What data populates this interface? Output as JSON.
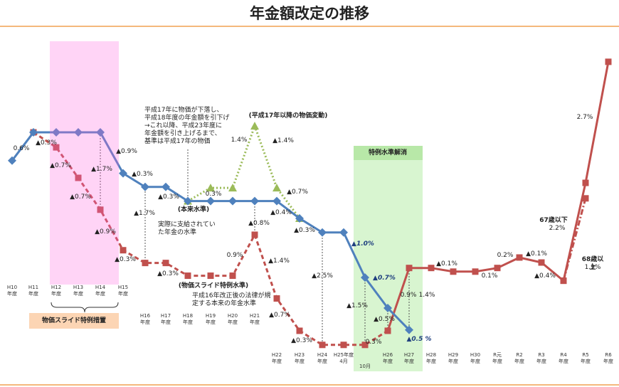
{
  "chart_data": {
    "type": "line",
    "title": "年金額改定の推移",
    "categories": [
      "H10\n年度",
      "H11\n年度",
      "H12\n年度",
      "H13\n年度",
      "H14\n年度",
      "H15\n年度",
      "H16\n年度",
      "H17\n年度",
      "H18\n年度",
      "H19\n年度",
      "H20\n年度",
      "H21\n年度",
      "H22\n年度",
      "H23\n年度",
      "H24\n年度",
      "H25年度\n4月",
      "10月",
      "H26\n年度",
      "H27\n年度",
      "H28\n年度",
      "H29\n年度",
      "H30\n年度",
      "R元\n年度",
      "R2\n年度",
      "R3\n年度",
      "R4\n年度",
      "R5\n年度",
      "R6\n年度"
    ],
    "ylim": [
      94.78,
      101.97
    ],
    "series": [
      {
        "name": "(本来水準)",
        "color": "#c0504d",
        "dash": "dashed",
        "marker": "square",
        "values": [
          null,
          100,
          99.67,
          99.0,
          98.3,
          97.41,
          97.13,
          97.13,
          96.85,
          96.85,
          96.85,
          97.75,
          96.35,
          95.64,
          95.33,
          95.33,
          95.33,
          95.64,
          null,
          null,
          null,
          null,
          null,
          null,
          null,
          null,
          null,
          null
        ]
      },
      {
        "color": "#c0504d",
        "dash": "solid",
        "marker": "square",
        "values": [
          null,
          null,
          null,
          null,
          null,
          null,
          null,
          null,
          null,
          null,
          null,
          null,
          null,
          null,
          null,
          null,
          null,
          95.64,
          97.02,
          97.02,
          96.94,
          96.94,
          97.02,
          97.25,
          97.14,
          96.74,
          98.89,
          101.55
        ]
      },
      {
        "color": "#c0504d",
        "dash": "dashdot",
        "marker": "square",
        "values": [
          null,
          null,
          null,
          null,
          null,
          null,
          null,
          null,
          null,
          null,
          null,
          null,
          null,
          null,
          null,
          null,
          null,
          null,
          null,
          null,
          null,
          null,
          null,
          null,
          null,
          96.74,
          98.55,
          null
        ]
      },
      {
        "name": "(平成17年以降の物価変動)",
        "color": "#9bbb59",
        "dash": "dotted",
        "marker": "triangle",
        "values": [
          null,
          null,
          null,
          null,
          null,
          null,
          null,
          null,
          98.49,
          98.78,
          98.78,
          100.14,
          98.78,
          98.11,
          null,
          null,
          null,
          null,
          null,
          null,
          null,
          null,
          null,
          null,
          null,
          null,
          null,
          null
        ]
      },
      {
        "name": "(物価スライド特例水準)",
        "color": "#4f81bd",
        "dash": "solid",
        "marker": "diamond",
        "values": [
          99.38,
          100,
          100,
          100,
          100,
          99.1,
          98.8,
          98.8,
          98.49,
          98.49,
          98.49,
          98.49,
          98.49,
          98.11,
          97.8,
          97.8,
          96.81,
          96.14,
          95.66,
          null,
          null,
          null,
          null,
          null,
          null,
          null,
          null,
          null
        ]
      }
    ],
    "annotations": [
      "0.6%",
      "▲0.3%",
      "▲0.7%",
      "▲1.7%",
      "▲0.9%",
      "▲0.3%",
      "▲0.7%",
      "▲0.9%",
      "▲0.3%",
      "▲1.7%",
      "▲0.3%",
      "▲0.3%",
      "平成17年に物価が下落し、\n平成18年度の年金額を引下げ\n→これ以降、平成23年度に\n年金額を引き上げるまで、\n基準は平成17年の物価",
      "1.4%",
      "▲1.4%",
      "0.3%",
      "▲0.7%",
      "▲0.4%",
      "▲0.3%",
      "▲0.8%",
      "実際に支給されてい\nた年金の水準",
      "0.9%",
      "▲1.4%",
      "平成16年改正後の法律が規\n定する本来の年金水準",
      "▲0.7%",
      "▲0.3%",
      "▲2.5%",
      "▲1.0%",
      "▲0.7%",
      "▲1.5%",
      "▲0.5%",
      "0.3%",
      "▲0.5 %",
      "0.9%",
      "1.4%",
      "▲0.1%",
      "0.1%",
      "0.2%",
      "▲0.1%",
      "▲0.4%",
      "2.7%",
      "67歳以下",
      "2.2%",
      "68歳以上",
      "1.9%"
    ],
    "special_period": "物価スライド特例措置",
    "resolution_period": "特例水準解消"
  }
}
